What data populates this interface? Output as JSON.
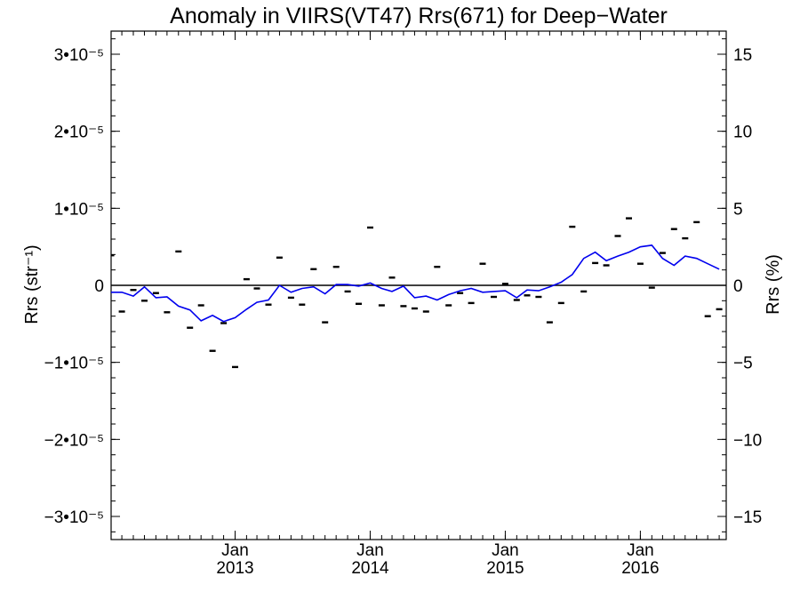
{
  "chart_data": {
    "type": "scatter",
    "title": "Anomaly in VIIRS(VT47) Rrs(671) for Deep−Water",
    "ylabel_left": "Rrs (str⁻¹)",
    "ylabel_right": "Rrs (%)",
    "y_left_range": [
      -3.3e-05,
      3.3e-05
    ],
    "y_right_range": [
      -16.5,
      16.5
    ],
    "x_range": [
      "2012-02-01",
      "2016-08-20"
    ],
    "y_left_ticks": [
      {
        "value": 3e-05,
        "label": "3•10⁻⁵"
      },
      {
        "value": 2e-05,
        "label": "2•10⁻⁵"
      },
      {
        "value": 1e-05,
        "label": "1•10⁻⁵"
      },
      {
        "value": 0,
        "label": "0"
      },
      {
        "value": -1e-05,
        "label": "−1•10⁻⁵"
      },
      {
        "value": -2e-05,
        "label": "−2•10⁻⁵"
      },
      {
        "value": -3e-05,
        "label": "−3•10⁻⁵"
      }
    ],
    "y_right_ticks": [
      {
        "value": 15,
        "label": "15"
      },
      {
        "value": 10,
        "label": "10"
      },
      {
        "value": 5,
        "label": "5"
      },
      {
        "value": 0,
        "label": "0"
      },
      {
        "value": -5,
        "label": "−5"
      },
      {
        "value": -10,
        "label": "−10"
      },
      {
        "value": -15,
        "label": "−15"
      }
    ],
    "x_ticks": [
      {
        "date": "2013-01-01",
        "month": "Jan",
        "year": "2013"
      },
      {
        "date": "2014-01-01",
        "month": "Jan",
        "year": "2014"
      },
      {
        "date": "2015-01-01",
        "month": "Jan",
        "year": "2015"
      },
      {
        "date": "2016-01-01",
        "month": "Jan",
        "year": "2016"
      }
    ],
    "series": [
      {
        "marker": "dash",
        "color": "#000000",
        "x": [
          "2012-02-01",
          "2012-03-01",
          "2012-04-01",
          "2012-05-01",
          "2012-06-01",
          "2012-07-01",
          "2012-08-01",
          "2012-09-01",
          "2012-10-01",
          "2012-11-01",
          "2012-12-01",
          "2013-01-01",
          "2013-02-01",
          "2013-03-01",
          "2013-04-01",
          "2013-05-01",
          "2013-06-01",
          "2013-07-01",
          "2013-08-01",
          "2013-09-01",
          "2013-10-01",
          "2013-11-01",
          "2013-12-01",
          "2014-01-01",
          "2014-02-01",
          "2014-03-01",
          "2014-04-01",
          "2014-05-01",
          "2014-06-01",
          "2014-07-01",
          "2014-08-01",
          "2014-09-01",
          "2014-10-01",
          "2014-11-01",
          "2014-12-01",
          "2015-01-01",
          "2015-02-01",
          "2015-03-01",
          "2015-04-01",
          "2015-05-01",
          "2015-06-01",
          "2015-07-01",
          "2015-08-01",
          "2015-09-01",
          "2015-10-01",
          "2015-11-01",
          "2015-12-01",
          "2016-01-01",
          "2016-02-01",
          "2016-03-01",
          "2016-04-01",
          "2016-05-01",
          "2016-06-01",
          "2016-07-01",
          "2016-08-01"
        ],
        "y": [
          3.9e-06,
          -3.4e-06,
          -6e-07,
          -2e-06,
          -1e-06,
          -3.5e-06,
          4.4e-06,
          -5.5e-06,
          -2.6e-06,
          -8.5e-06,
          -4.9e-06,
          -1.06e-05,
          8e-07,
          -4e-07,
          -2.5e-06,
          3.6e-06,
          -1.6e-06,
          -2.5e-06,
          2.1e-06,
          -4.8e-06,
          2.4e-06,
          -8e-07,
          -2.4e-06,
          7.5e-06,
          -2.6e-06,
          1e-06,
          -2.7e-06,
          -3e-06,
          -3.4e-06,
          2.4e-06,
          -2.6e-06,
          -1e-06,
          -2.3e-06,
          2.8e-06,
          -1.5e-06,
          2e-07,
          -1.9e-06,
          -1.3e-06,
          -1.5e-06,
          -4.8e-06,
          -2.3e-06,
          7.6e-06,
          -8e-07,
          2.9e-06,
          2.6e-06,
          6.4e-06,
          8.7e-06,
          2.8e-06,
          -3e-07,
          4.2e-06,
          7.3e-06,
          6.1e-06,
          8.2e-06,
          -4e-06,
          -3.1e-06
        ]
      },
      {
        "marker": "line",
        "color": "#0000ee",
        "x": [
          "2012-02-01",
          "2012-03-01",
          "2012-04-01",
          "2012-05-01",
          "2012-06-01",
          "2012-07-01",
          "2012-08-01",
          "2012-09-01",
          "2012-10-01",
          "2012-11-01",
          "2012-12-01",
          "2013-01-01",
          "2013-02-01",
          "2013-03-01",
          "2013-04-01",
          "2013-05-01",
          "2013-06-01",
          "2013-07-01",
          "2013-08-01",
          "2013-09-01",
          "2013-10-01",
          "2013-11-01",
          "2013-12-01",
          "2014-01-01",
          "2014-02-01",
          "2014-03-01",
          "2014-04-01",
          "2014-05-01",
          "2014-06-01",
          "2014-07-01",
          "2014-08-01",
          "2014-09-01",
          "2014-10-01",
          "2014-11-01",
          "2014-12-01",
          "2015-01-01",
          "2015-02-01",
          "2015-03-01",
          "2015-04-01",
          "2015-05-01",
          "2015-06-01",
          "2015-07-01",
          "2015-08-01",
          "2015-09-01",
          "2015-10-01",
          "2015-11-01",
          "2015-12-01",
          "2016-01-01",
          "2016-02-01",
          "2016-03-01",
          "2016-04-01",
          "2016-05-01",
          "2016-06-01",
          "2016-07-01",
          "2016-08-01"
        ],
        "y": [
          -9e-07,
          -9e-07,
          -1.4e-06,
          -2e-07,
          -1.6e-06,
          -1.5e-06,
          -2.7e-06,
          -3.2e-06,
          -4.6e-06,
          -3.9e-06,
          -4.7e-06,
          -4.2e-06,
          -3.1e-06,
          -2.2e-06,
          -1.9e-06,
          0,
          -9e-07,
          -4e-07,
          -2e-07,
          -1.1e-06,
          1e-07,
          1e-07,
          -1e-07,
          3e-07,
          -4e-07,
          -8e-07,
          -1e-07,
          -1.6e-06,
          -1.4e-06,
          -1.9e-06,
          -1.2e-06,
          -7e-07,
          -4e-07,
          -9e-07,
          -8e-07,
          -7e-07,
          -1.6e-06,
          -6e-07,
          -7e-07,
          -2e-07,
          4e-07,
          1.4e-06,
          3.5e-06,
          4.3e-06,
          3.2e-06,
          3.8e-06,
          4.3e-06,
          5e-06,
          5.2e-06,
          3.5e-06,
          2.6e-06,
          3.8e-06,
          3.5e-06,
          2.8e-06,
          2.1e-06
        ]
      }
    ]
  }
}
